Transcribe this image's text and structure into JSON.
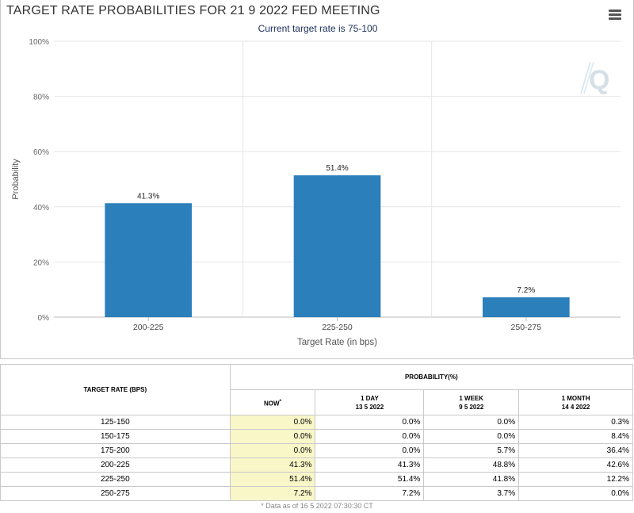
{
  "chart_data": {
    "type": "bar",
    "title": "TARGET RATE PROBABILITIES FOR 21 9 2022 FED MEETING",
    "subtitle": "Current target rate is 75-100",
    "categories": [
      "200-225",
      "225-250",
      "250-275"
    ],
    "values": [
      41.3,
      51.4,
      7.2
    ],
    "data_labels": [
      "41.3%",
      "51.4%",
      "7.2%"
    ],
    "xlabel": "Target Rate (in bps)",
    "ylabel": "Probability",
    "ylim": [
      0,
      100
    ],
    "yticks": [
      "0%",
      "20%",
      "40%",
      "60%",
      "80%",
      "100%"
    ],
    "ytick_values": [
      0,
      20,
      40,
      60,
      80,
      100
    ],
    "bar_color": "#2b7fba",
    "grid": true
  },
  "icons": {
    "menu": "hamburger-menu-icon",
    "watermark": "q-logo-watermark"
  },
  "table": {
    "header_target": "TARGET RATE (BPS)",
    "header_probability": "PROBABILITY(%)",
    "col_now": "NOW",
    "col_now_mark": "*",
    "col_1day": "1 DAY",
    "col_1day_date": "13 5 2022",
    "col_1week": "1 WEEK",
    "col_1week_date": "9 5 2022",
    "col_1month": "1 MONTH",
    "col_1month_date": "14 4 2022",
    "rows": [
      {
        "rate": "125-150",
        "now": "0.0%",
        "day": "0.0%",
        "week": "0.0%",
        "month": "0.3%"
      },
      {
        "rate": "150-175",
        "now": "0.0%",
        "day": "0.0%",
        "week": "0.0%",
        "month": "8.4%"
      },
      {
        "rate": "175-200",
        "now": "0.0%",
        "day": "0.0%",
        "week": "5.7%",
        "month": "36.4%"
      },
      {
        "rate": "200-225",
        "now": "41.3%",
        "day": "41.3%",
        "week": "48.8%",
        "month": "42.6%"
      },
      {
        "rate": "225-250",
        "now": "51.4%",
        "day": "51.4%",
        "week": "41.8%",
        "month": "12.2%"
      },
      {
        "rate": "250-275",
        "now": "7.2%",
        "day": "7.2%",
        "week": "3.7%",
        "month": "0.0%"
      }
    ],
    "footnote": "* Data as of 16 5 2022 07:30:30 CT"
  }
}
